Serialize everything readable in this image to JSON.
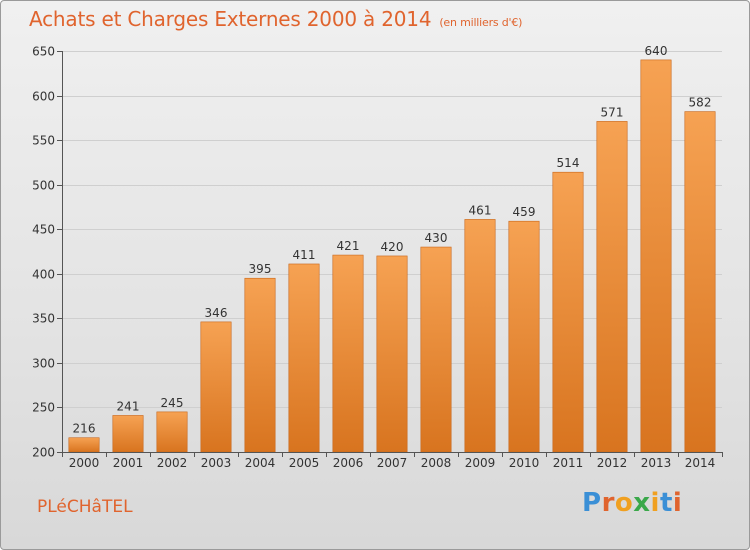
{
  "header": {
    "title": "Achats et Charges Externes 2000 à 2014",
    "unit": "(en milliers d'€)"
  },
  "footer": {
    "commune": "PLéCHâTEL",
    "logo": {
      "text": "Proxiti",
      "letter_colors": [
        "#3a8fd6",
        "#e0642e",
        "#f0a020",
        "#3aa84a",
        "#f0a020",
        "#3a8fd6",
        "#e0642e"
      ]
    }
  },
  "colors": {
    "bar_top": "#f6a253",
    "bar_bottom": "#d8741f",
    "accent": "#e0642e",
    "grid": "#cfcfcf"
  },
  "chart_data": {
    "type": "bar",
    "title": "Achats et Charges Externes 2000 à 2014",
    "categories": [
      "2000",
      "2001",
      "2002",
      "2003",
      "2004",
      "2005",
      "2006",
      "2007",
      "2008",
      "2009",
      "2010",
      "2011",
      "2012",
      "2013",
      "2014"
    ],
    "values": [
      216,
      241,
      245,
      346,
      395,
      411,
      421,
      420,
      430,
      461,
      459,
      514,
      571,
      640,
      582
    ],
    "ylim": [
      200,
      650
    ],
    "yticks": [
      200,
      250,
      300,
      350,
      400,
      450,
      500,
      550,
      600,
      650
    ],
    "grid": true,
    "data_labels": true
  }
}
